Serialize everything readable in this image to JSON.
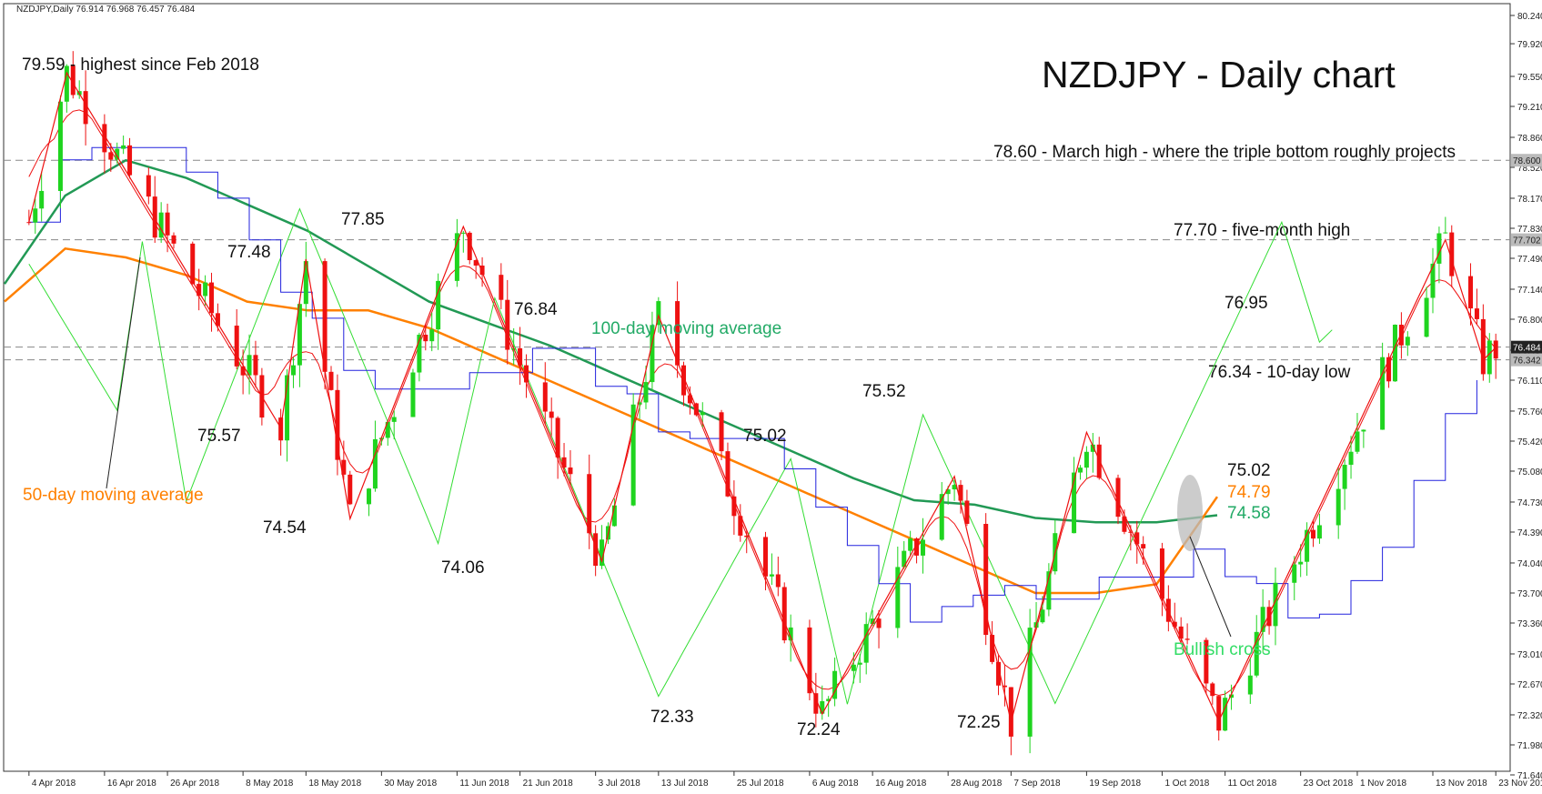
{
  "header": {
    "info": "NZDJPY,Daily  76.914 76.968 76.457 76.484"
  },
  "title": "NZDJPY - Daily chart",
  "colors": {
    "up": "#1fd41f",
    "down": "#ee1111",
    "ma50": "#ff8000",
    "ma100": "#229955",
    "tenkan": "#ee1111",
    "kijun": "#2222dd",
    "chikou": "#33dd33",
    "cloud_bull": "#ff9a52",
    "cloud_bear": "#c8a0d8",
    "zigzag": "#ee1111",
    "dash": "#888888",
    "text": "#111111",
    "ma50_label": "#ff8000",
    "ma100_label": "#22aa66",
    "bullish_label": "#33dd66",
    "price_box": "#222222"
  },
  "chart_data": {
    "type": "candlestick",
    "title": "NZDJPY - Daily chart",
    "ylim": [
      71.64,
      80.38
    ],
    "y_ticks": [
      "80.240",
      "79.920",
      "79.550",
      "79.210",
      "78.860",
      "78.520",
      "78.170",
      "77.830",
      "77.490",
      "77.140",
      "76.800",
      "76.450",
      "76.110",
      "75.760",
      "75.420",
      "75.080",
      "74.730",
      "74.390",
      "74.040",
      "73.700",
      "73.360",
      "73.010",
      "72.670",
      "72.320",
      "71.980",
      "71.640"
    ],
    "x_ticks": [
      "4 Apr 2018",
      "16 Apr 2018",
      "26 Apr 2018",
      "8 May 2018",
      "18 May 2018",
      "30 May 2018",
      "11 Jun 2018",
      "21 Jun 2018",
      "3 Jul 2018",
      "13 Jul 2018",
      "25 Jul 2018",
      "6 Aug 2018",
      "16 Aug 2018",
      "28 Aug 2018",
      "7 Sep 2018",
      "19 Sep 2018",
      "1 Oct 2018",
      "11 Oct 2018",
      "23 Oct 2018",
      "1 Nov 2018",
      "13 Nov 2018",
      "23 Nov 2018"
    ],
    "swing_path": [
      {
        "date": "4 Apr 2018",
        "value": 77.9
      },
      {
        "date": "10 Apr 2018",
        "value": 79.59
      },
      {
        "date": "14 May 2018",
        "value": 75.57
      },
      {
        "date": "18 May 2018",
        "value": 77.48
      },
      {
        "date": "25 May 2018",
        "value": 74.54
      },
      {
        "date": "12 Jun 2018",
        "value": 77.85
      },
      {
        "date": "4 Jul 2018",
        "value": 74.06
      },
      {
        "date": "13 Jul 2018",
        "value": 76.84
      },
      {
        "date": "8 Aug 2018",
        "value": 72.33
      },
      {
        "date": "29 Aug 2018",
        "value": 75.02
      },
      {
        "date": "7 Sep 2018",
        "value": 72.24
      },
      {
        "date": "19 Sep 2018",
        "value": 75.52
      },
      {
        "date": "10 Oct 2018",
        "value": 72.25
      },
      {
        "date": "15 Nov 2018",
        "value": 77.7
      },
      {
        "date": "21 Nov 2018",
        "value": 76.34
      },
      {
        "date": "23 Nov 2018",
        "value": 76.48
      }
    ],
    "moving_averages": [
      {
        "name": "100-day moving average",
        "points": [
          77.2,
          78.2,
          78.6,
          78.4,
          78.1,
          77.8,
          77.4,
          77.0,
          76.75,
          76.5,
          76.2,
          75.9,
          75.6,
          75.3,
          75.0,
          74.75,
          74.7,
          74.55,
          74.5,
          74.5,
          74.58
        ]
      },
      {
        "name": "50-day moving average",
        "points": [
          77.0,
          77.6,
          77.5,
          77.3,
          77.0,
          76.9,
          76.9,
          76.7,
          76.4,
          76.1,
          75.8,
          75.5,
          75.2,
          74.9,
          74.6,
          74.3,
          74.0,
          73.7,
          73.7,
          73.8,
          74.79
        ]
      }
    ],
    "levels": [
      {
        "value": 78.6,
        "label": "78.60 - March high - where the triple bottom roughly projects",
        "price_tag": "78.600"
      },
      {
        "value": 77.7,
        "label": "77.70 - five-month high",
        "price_tag": "77.702"
      },
      {
        "value": 76.484,
        "label": "",
        "price_tag": "76.484"
      },
      {
        "value": 76.34,
        "label": "76.34 - 10-day low",
        "price_tag": "76.342"
      }
    ],
    "annotations": [
      {
        "text": "79.59 - highest since Feb 2018"
      },
      {
        "text": "77.48"
      },
      {
        "text": "75.57"
      },
      {
        "text": "74.54"
      },
      {
        "text": "77.85"
      },
      {
        "text": "74.06"
      },
      {
        "text": "76.84"
      },
      {
        "text": "72.33"
      },
      {
        "text": "75.02"
      },
      {
        "text": "72.24"
      },
      {
        "text": "75.52"
      },
      {
        "text": "72.25"
      },
      {
        "text": "76.95"
      }
    ],
    "ma_labels": {
      "ma100": "100-day moving average",
      "ma50": "50-day moving average"
    },
    "right_values": [
      {
        "text": "75.02",
        "color": "#111111"
      },
      {
        "text": "74.79",
        "color": "#ff8000"
      },
      {
        "text": "74.58",
        "color": "#22aa66"
      }
    ],
    "bullish_cross_label": "Bullish cross"
  }
}
